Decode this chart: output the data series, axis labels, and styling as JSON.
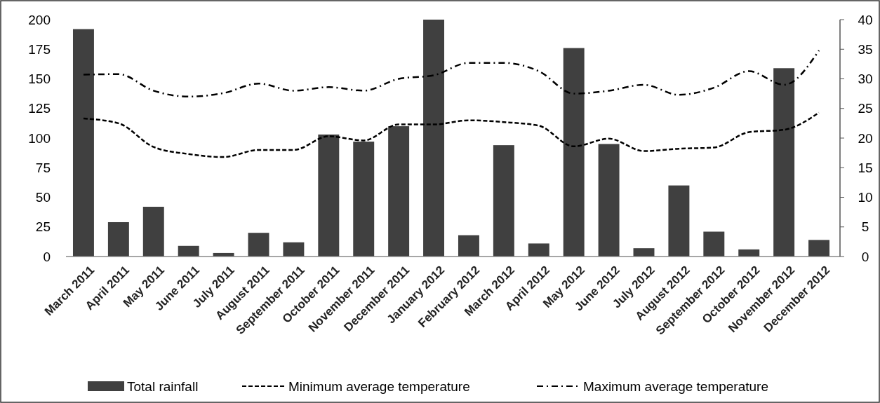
{
  "chart_data": {
    "type": "bar",
    "categories": [
      "March 2011",
      "April 2011",
      "May 2011",
      "June 2011",
      "July 2011",
      "August 2011",
      "September 2011",
      "October 2011",
      "November 2011",
      "December 2011",
      "January 2012",
      "February 2012",
      "March 2012",
      "April 2012",
      "May 2012",
      "June 2012",
      "July 2012",
      "August 2012",
      "September 2012",
      "October 2012",
      "November 2012",
      "December 2012"
    ],
    "series": [
      {
        "name": "Total rainfall",
        "color": "#404040",
        "values": [
          192,
          29,
          42,
          9,
          3,
          20,
          12,
          103,
          97,
          110,
          200,
          18,
          94,
          11,
          176,
          95,
          7,
          60,
          21,
          6,
          159,
          14
        ]
      },
      {
        "name": "Minimum average temperature",
        "type": "line",
        "axis": "y2",
        "color": "#000000",
        "line_style": "dashed",
        "values": [
          23.3,
          22.5,
          18.5,
          17.3,
          16.8,
          18.0,
          18.0,
          20.3,
          19.6,
          22.3,
          22.3,
          23.0,
          22.7,
          22.1,
          18.6,
          19.9,
          17.8,
          18.2,
          18.4,
          21.0,
          21.4,
          24.3
        ]
      },
      {
        "name": "Maximum average temperature",
        "type": "line",
        "axis": "y2",
        "color": "#000000",
        "line_style": "dashdot",
        "values": [
          30.7,
          30.8,
          28.0,
          27.0,
          27.6,
          29.2,
          28.0,
          28.6,
          28.0,
          30.0,
          30.6,
          32.7,
          32.7,
          31.3,
          27.5,
          28.0,
          29.0,
          27.3,
          28.5,
          31.3,
          29.0,
          34.8
        ]
      }
    ],
    "ylim": [
      0,
      200
    ],
    "yticks": [
      0,
      25,
      50,
      75,
      100,
      125,
      150,
      175,
      200
    ],
    "y2lim": [
      0,
      40
    ],
    "y2ticks": [
      0,
      5,
      10,
      15,
      20,
      25,
      30,
      35,
      40
    ],
    "grid": false,
    "legend": "bottom"
  }
}
